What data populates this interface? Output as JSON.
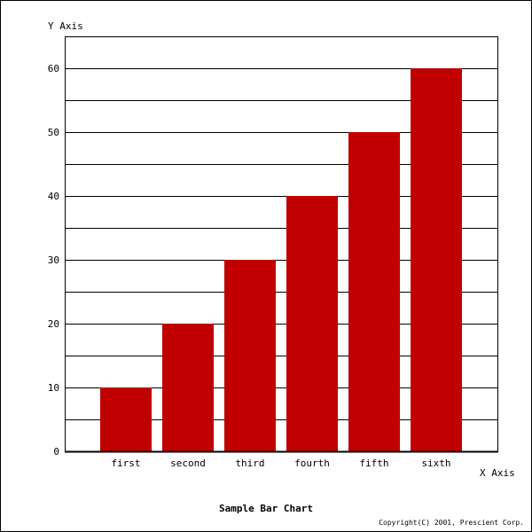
{
  "chart_data": {
    "type": "bar",
    "title": "Sample Bar Chart",
    "xlabel": "X Axis",
    "ylabel": "Y Axis",
    "categories": [
      "first",
      "second",
      "third",
      "fourth",
      "fifth",
      "sixth"
    ],
    "values": [
      10,
      20,
      30,
      40,
      50,
      60
    ],
    "ylim": [
      0,
      65
    ],
    "yticks": [
      0,
      10,
      20,
      30,
      40,
      50,
      60
    ],
    "minor_gridlines_step": 5,
    "grid": true,
    "bar_color": "#c00000"
  },
  "copyright": "Copyright(C) 2001, Prescient Corp."
}
